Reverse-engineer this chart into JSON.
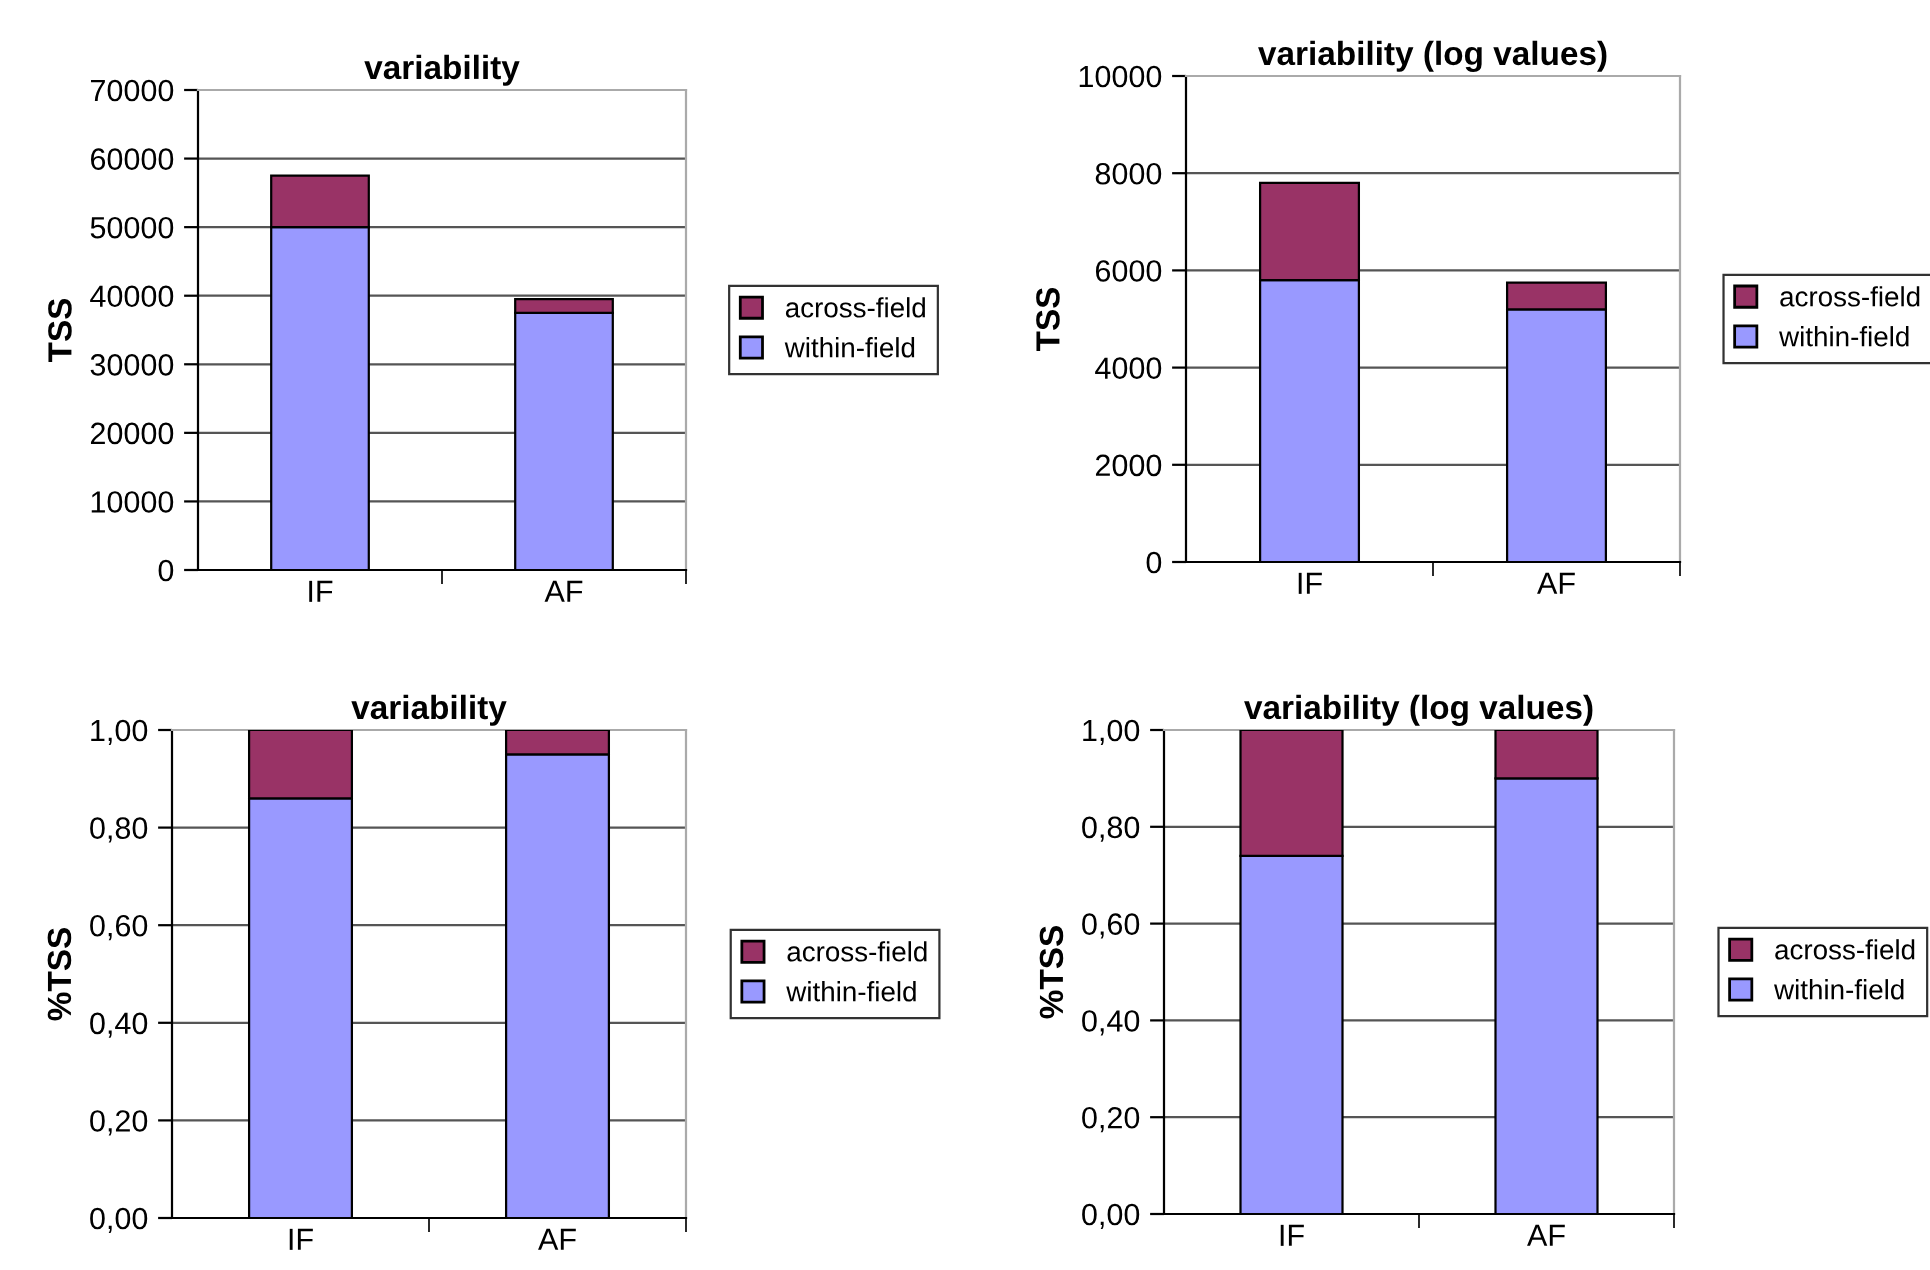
{
  "chart_data": [
    {
      "type": "bar",
      "title": "variability",
      "ylabel": "TSS",
      "categories": [
        "IF",
        "AF"
      ],
      "stacked": true,
      "grid": "y",
      "legend": "right",
      "ylim": [
        0,
        70000
      ],
      "yticks": [
        0,
        10000,
        20000,
        30000,
        40000,
        50000,
        60000,
        70000
      ],
      "series": [
        {
          "name": "within-field",
          "color": "#9999ff",
          "values": [
            50000,
            37500
          ]
        },
        {
          "name": "across-field",
          "color": "#993366",
          "values": [
            7500,
            2000
          ]
        }
      ]
    },
    {
      "type": "bar",
      "title": "variability (log values)",
      "ylabel": "TSS",
      "categories": [
        "IF",
        "AF"
      ],
      "stacked": true,
      "grid": "y",
      "legend": "right",
      "ylim": [
        0,
        10000
      ],
      "yticks": [
        0,
        2000,
        4000,
        6000,
        8000,
        10000
      ],
      "series": [
        {
          "name": "within-field",
          "color": "#9999ff",
          "values": [
            5800,
            5200
          ]
        },
        {
          "name": "across-field",
          "color": "#993366",
          "values": [
            2000,
            550
          ]
        }
      ]
    },
    {
      "type": "bar",
      "title": "variability",
      "ylabel": "%TSS",
      "categories": [
        "IF",
        "AF"
      ],
      "stacked": true,
      "grid": "y",
      "legend": "right",
      "ylim": [
        0,
        1
      ],
      "yticks": [
        {
          "value": 0,
          "label": "0,00"
        },
        {
          "value": 0.2,
          "label": "0,20"
        },
        {
          "value": 0.4,
          "label": "0,40"
        },
        {
          "value": 0.6,
          "label": "0,60"
        },
        {
          "value": 0.8,
          "label": "0,80"
        },
        {
          "value": 1,
          "label": "1,00"
        }
      ],
      "series": [
        {
          "name": "within-field",
          "color": "#9999ff",
          "values": [
            0.86,
            0.95
          ]
        },
        {
          "name": "across-field",
          "color": "#993366",
          "values": [
            0.14,
            0.05
          ]
        }
      ]
    },
    {
      "type": "bar",
      "title": "variability (log values)",
      "ylabel": "%TSS",
      "categories": [
        "IF",
        "AF"
      ],
      "stacked": true,
      "grid": "y",
      "legend": "right",
      "ylim": [
        0,
        1
      ],
      "yticks": [
        {
          "value": 0,
          "label": "0,00"
        },
        {
          "value": 0.2,
          "label": "0,20"
        },
        {
          "value": 0.4,
          "label": "0,40"
        },
        {
          "value": 0.6,
          "label": "0,60"
        },
        {
          "value": 0.8,
          "label": "0,80"
        },
        {
          "value": 1,
          "label": "1,00"
        }
      ],
      "series": [
        {
          "name": "within-field",
          "color": "#9999ff",
          "values": [
            0.74,
            0.9
          ]
        },
        {
          "name": "across-field",
          "color": "#993366",
          "values": [
            0.26,
            0.1
          ]
        }
      ]
    }
  ]
}
